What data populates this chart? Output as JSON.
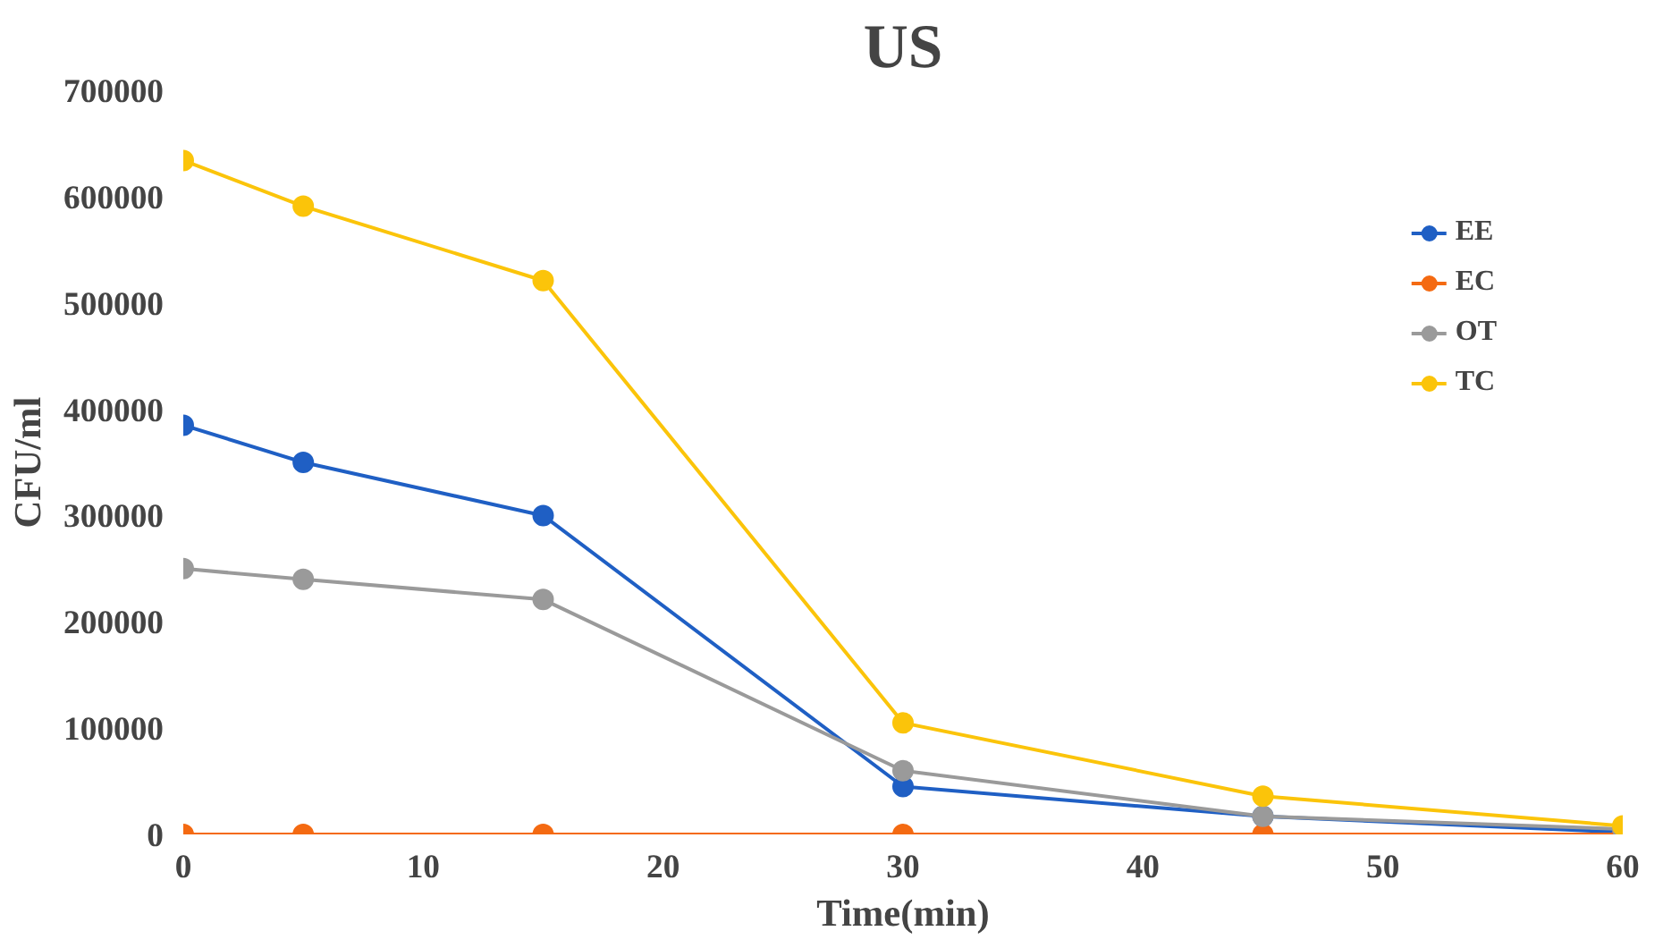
{
  "chart_data": {
    "type": "line",
    "title": "US",
    "xlabel": "Time(min)",
    "ylabel": "CFU/ml",
    "x": [
      0,
      5,
      15,
      30,
      45,
      60
    ],
    "series": [
      {
        "name": "EE",
        "color": "#1f5fc4",
        "values": [
          385000,
          350000,
          300000,
          45000,
          17000,
          2000
        ]
      },
      {
        "name": "EC",
        "color": "#f46a12",
        "values": [
          0,
          0,
          0,
          0,
          0,
          0
        ]
      },
      {
        "name": "OT",
        "color": "#9a9a9a",
        "values": [
          250000,
          240000,
          221000,
          60000,
          17000,
          5000
        ]
      },
      {
        "name": "TC",
        "color": "#fbc40a",
        "values": [
          634000,
          591000,
          521000,
          105000,
          36000,
          8000
        ]
      }
    ],
    "xlim": [
      0,
      60
    ],
    "ylim": [
      0,
      700000
    ],
    "xticks": [
      0,
      10,
      20,
      30,
      40,
      50,
      60
    ],
    "yticks": [
      0,
      100000,
      200000,
      300000,
      400000,
      500000,
      600000,
      700000
    ],
    "grid": false,
    "legend": "right",
    "marker": "circle",
    "line_style": "solid"
  }
}
